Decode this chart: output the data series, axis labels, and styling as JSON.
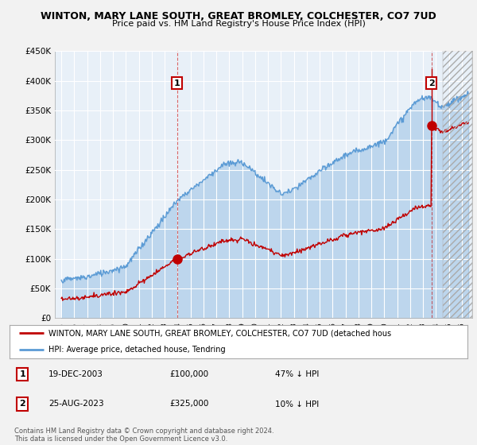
{
  "title": "WINTON, MARY LANE SOUTH, GREAT BROMLEY, COLCHESTER, CO7 7UD",
  "subtitle": "Price paid vs. HM Land Registry's House Price Index (HPI)",
  "hpi_label": "HPI: Average price, detached house, Tendring",
  "property_label": "WINTON, MARY LANE SOUTH, GREAT BROMLEY, COLCHESTER, CO7 7UD (detached hous",
  "annotation1": {
    "label": "1",
    "date": "19-DEC-2003",
    "price": "£100,000",
    "hpi_diff": "47% ↓ HPI",
    "x_year": 2003.96,
    "y_val": 100000
  },
  "annotation2": {
    "label": "2",
    "date": "25-AUG-2023",
    "price": "£325,000",
    "hpi_diff": "10% ↓ HPI",
    "x_year": 2023.64,
    "y_val": 325000
  },
  "ylim": [
    0,
    450000
  ],
  "xlim_left": 1994.5,
  "xlim_right": 2026.8,
  "yticks": [
    0,
    50000,
    100000,
    150000,
    200000,
    250000,
    300000,
    350000,
    400000,
    450000
  ],
  "ytick_labels": [
    "£0",
    "£50K",
    "£100K",
    "£150K",
    "£200K",
    "£250K",
    "£300K",
    "£350K",
    "£400K",
    "£450K"
  ],
  "xticks": [
    1995,
    1996,
    1997,
    1998,
    1999,
    2000,
    2001,
    2002,
    2003,
    2004,
    2005,
    2006,
    2007,
    2008,
    2009,
    2010,
    2011,
    2012,
    2013,
    2014,
    2015,
    2016,
    2017,
    2018,
    2019,
    2020,
    2021,
    2022,
    2023,
    2024,
    2025,
    2026
  ],
  "hpi_color": "#5b9bd5",
  "hpi_fill_color": "#ddeeff",
  "property_color": "#c00000",
  "background_color": "#f2f2f2",
  "plot_bg_color": "#e8f0f8",
  "grid_color": "#ffffff",
  "footer": "Contains HM Land Registry data © Crown copyright and database right 2024.\nThis data is licensed under the Open Government Licence v3.0."
}
